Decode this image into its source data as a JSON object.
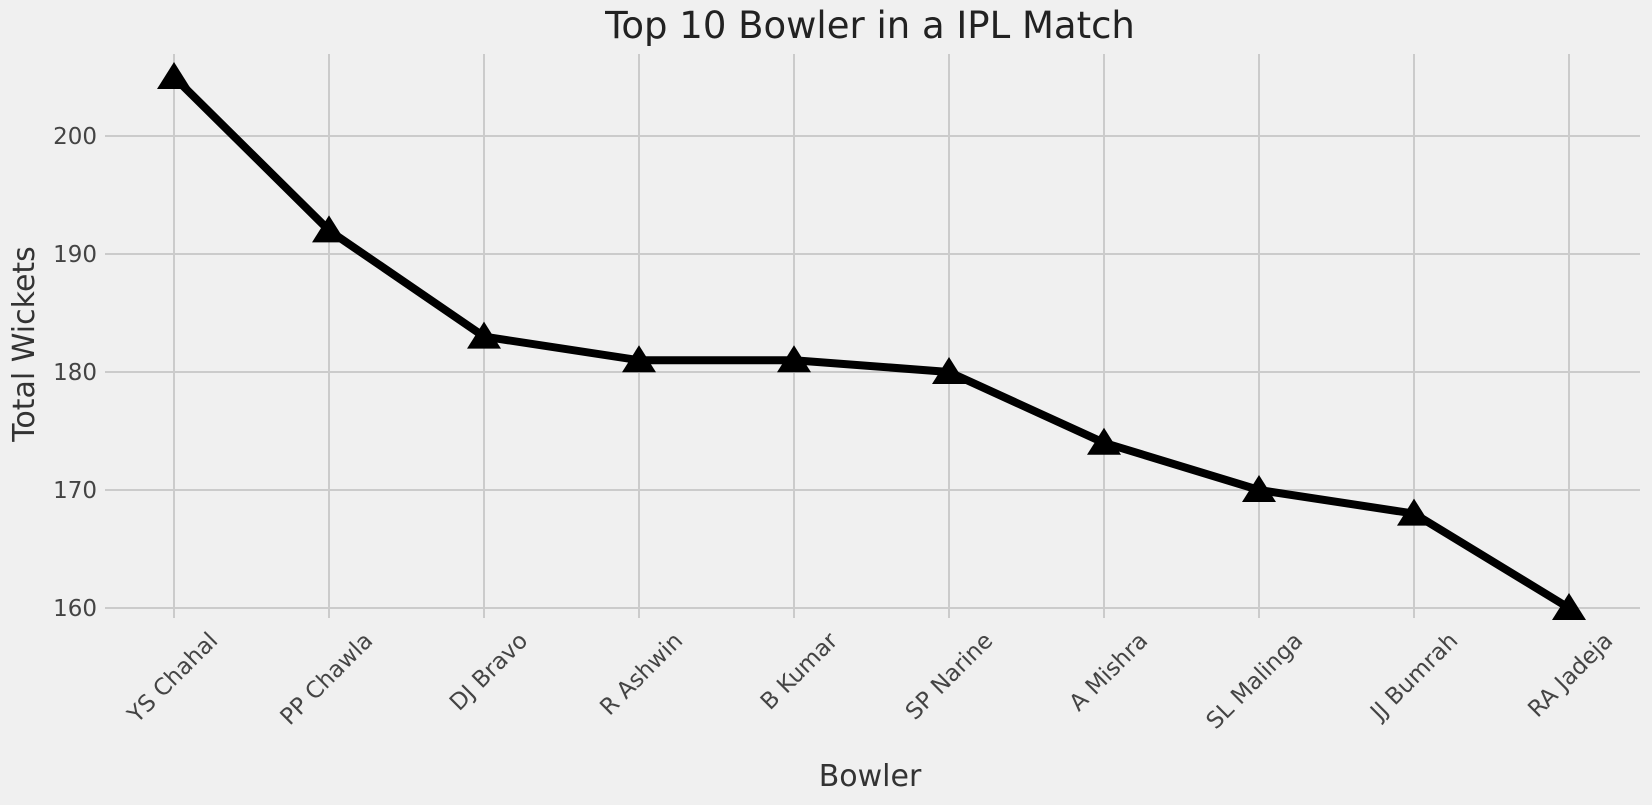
{
  "chart_data": {
    "type": "line",
    "title": "Top 10 Bowler in a IPL Match",
    "xlabel": "Bowler",
    "ylabel": "Total Wickets",
    "categories": [
      "YS Chahal",
      "PP Chawla",
      "DJ Bravo",
      "R Ashwin",
      "B Kumar",
      "SP Narine",
      "A Mishra",
      "SL Malinga",
      "JJ Bumrah",
      "RA Jadeja"
    ],
    "series": [
      {
        "values": [
          205,
          192,
          183,
          181,
          181,
          180,
          174,
          170,
          168,
          160
        ],
        "color": "#000000",
        "marker": "triangle-up"
      }
    ],
    "yticks": [
      160,
      170,
      180,
      190,
      200
    ],
    "ylim": [
      158,
      210
    ],
    "grid": true,
    "background": "#f0f0f0"
  }
}
